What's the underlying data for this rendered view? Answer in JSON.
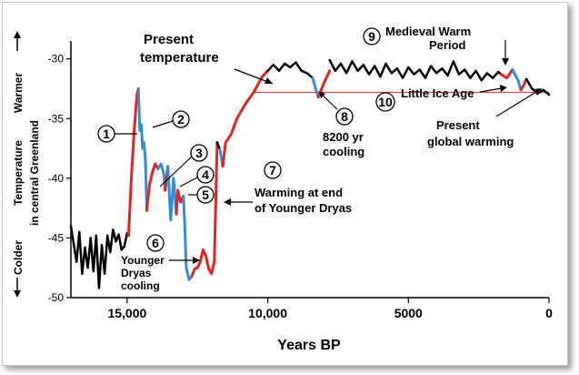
{
  "chart_data": {
    "type": "line",
    "xlabel": "Years BP",
    "ylabel_line1": "Temperature",
    "ylabel_line2": "in central Greenland",
    "warmer_label": "Warmer",
    "colder_label": "Colder",
    "xlim": [
      17000,
      0
    ],
    "ylim": [
      -50,
      -28.5
    ],
    "x_ticks": [
      15000,
      10000,
      5000,
      0
    ],
    "x_tick_labels": [
      "15,000",
      "10,000",
      "5000",
      "0"
    ],
    "y_ticks": [
      -30,
      -35,
      -40,
      -45,
      -50
    ],
    "y_tick_labels": [
      "-30",
      "-35",
      "-40",
      "-45",
      "-50"
    ],
    "present_temperature": -32.8,
    "colors": {
      "warming": "#e8231e",
      "cooling": "#2a8fe0",
      "neutral": "#000000",
      "present_line": "#e8231e"
    },
    "segments": [
      {
        "kind": "neutral",
        "x": [
          17000,
          16900,
          16800,
          16700,
          16600,
          16500,
          16400,
          16300,
          16200,
          16100,
          16000,
          15900,
          15800,
          15700,
          15600,
          15500,
          15400,
          15300,
          15200,
          15100,
          15000,
          14950
        ],
        "y": [
          -44,
          -45.5,
          -47,
          -44.5,
          -48,
          -45.8,
          -47.5,
          -45,
          -47.8,
          -44.8,
          -49.2,
          -45.6,
          -48,
          -44.8,
          -46.2,
          -44.3,
          -45.3,
          -44.7,
          -46,
          -45.7,
          -44.6,
          -44.8
        ]
      },
      {
        "kind": "warming",
        "x": [
          14950,
          14850,
          14750,
          14650,
          14600
        ],
        "y": [
          -44.8,
          -40,
          -36,
          -33,
          -32.5
        ]
      },
      {
        "kind": "cooling",
        "x": [
          14600,
          14550,
          14500,
          14450,
          14400,
          14350,
          14300
        ],
        "y": [
          -32.5,
          -36,
          -35.5,
          -37.5,
          -37,
          -38.5,
          -42.7
        ]
      },
      {
        "kind": "warming",
        "x": [
          14300,
          14200,
          14100,
          14000,
          13900
        ],
        "y": [
          -42.7,
          -40.5,
          -39.5,
          -38.8,
          -39.2
        ]
      },
      {
        "kind": "cooling",
        "x": [
          13900,
          13800,
          13700,
          13650
        ],
        "y": [
          -39.2,
          -38.8,
          -39.6,
          -41
        ]
      },
      {
        "kind": "warming",
        "x": [
          13650,
          13550
        ],
        "y": [
          -41,
          -39
        ]
      },
      {
        "kind": "cooling",
        "x": [
          13550,
          13450,
          13350,
          13250
        ],
        "y": [
          -39,
          -43.5,
          -40,
          -43
        ]
      },
      {
        "kind": "warming",
        "x": [
          13250,
          13200,
          13100,
          13000
        ],
        "y": [
          -43,
          -41,
          -42,
          -41.5
        ]
      },
      {
        "kind": "cooling",
        "x": [
          13000,
          12950,
          12900,
          12800,
          12700
        ],
        "y": [
          -41.5,
          -44,
          -47.5,
          -48.5,
          -48.2
        ]
      },
      {
        "kind": "warming",
        "x": [
          12700,
          12600,
          12500,
          12400,
          12300,
          12200,
          12100,
          12000,
          11900,
          11800
        ],
        "y": [
          -48.2,
          -47.6,
          -47.5,
          -47,
          -46,
          -46.5,
          -47.6,
          -48,
          -47,
          -37
        ]
      },
      {
        "kind": "neutral",
        "x": [
          11800,
          11700
        ],
        "y": [
          -37,
          -37.6
        ]
      },
      {
        "kind": "cooling",
        "x": [
          11700,
          11600
        ],
        "y": [
          -37.6,
          -39
        ]
      },
      {
        "kind": "warming",
        "x": [
          11600,
          11500,
          11300,
          11100,
          10800,
          10500,
          10200,
          10000
        ],
        "y": [
          -39,
          -37,
          -36.3,
          -35,
          -33.8,
          -32.8,
          -31.5,
          -31
        ]
      },
      {
        "kind": "neutral",
        "x": [
          10000,
          9800,
          9600,
          9400,
          9200,
          9000,
          8800,
          8600,
          8400
        ],
        "y": [
          -31,
          -30.5,
          -31,
          -30.4,
          -30.7,
          -30.3,
          -31,
          -31.2,
          -31.6
        ]
      },
      {
        "kind": "cooling",
        "x": [
          8400,
          8300,
          8200
        ],
        "y": [
          -31.6,
          -32.5,
          -33.2
        ]
      },
      {
        "kind": "warming",
        "x": [
          8200,
          8000,
          7800
        ],
        "y": [
          -33.2,
          -32,
          -31
        ]
      },
      {
        "kind": "neutral",
        "x": [
          7800,
          7600,
          7400,
          7200,
          7000,
          6800,
          6600,
          6400,
          6200,
          6000,
          5800,
          5600,
          5400,
          5200,
          5000,
          4800,
          4600,
          4400,
          4200,
          4000,
          3800,
          3600,
          3400,
          3200,
          3000,
          2800,
          2600,
          2400,
          2200,
          2000,
          1800,
          1700
        ],
        "y": [
          -30.1,
          -31,
          -30.4,
          -31.2,
          -30.2,
          -31,
          -30.5,
          -31.3,
          -30.6,
          -31.5,
          -30.4,
          -31.2,
          -30.8,
          -31.6,
          -30.7,
          -31.3,
          -30.9,
          -31.6,
          -30.6,
          -31.2,
          -30.8,
          -31.4,
          -30.2,
          -31.3,
          -30.9,
          -31.6,
          -31,
          -31.8,
          -31.2,
          -31.6,
          -31.1,
          -31.3
        ]
      },
      {
        "kind": "warming",
        "x": [
          1700,
          1500,
          1300
        ],
        "y": [
          -31.3,
          -31.6,
          -30.9
        ]
      },
      {
        "kind": "cooling",
        "x": [
          1300,
          1100,
          1000
        ],
        "y": [
          -30.9,
          -31.8,
          -32.6
        ]
      },
      {
        "kind": "warming",
        "x": [
          1000,
          900,
          800
        ],
        "y": [
          -32.6,
          -32.2,
          -31.7
        ]
      },
      {
        "kind": "neutral",
        "x": [
          800,
          600,
          400,
          200,
          0
        ],
        "y": [
          -31.7,
          -32.5,
          -32.9,
          -32.6,
          -33
        ]
      }
    ],
    "annotations": [
      {
        "id": "title-present",
        "num": "",
        "lines": [
          "Present",
          "temperature"
        ]
      },
      {
        "id": "a1",
        "num": "1",
        "lines": []
      },
      {
        "id": "a2",
        "num": "2",
        "lines": []
      },
      {
        "id": "a3",
        "num": "3",
        "lines": []
      },
      {
        "id": "a4",
        "num": "4",
        "lines": []
      },
      {
        "id": "a5",
        "num": "5",
        "lines": []
      },
      {
        "id": "a6",
        "num": "6",
        "lines": [
          "Younger",
          "Dryas",
          "cooling"
        ]
      },
      {
        "id": "a7",
        "num": "7",
        "lines": [
          "Warming at end",
          "of Younger Dryas"
        ]
      },
      {
        "id": "a8",
        "num": "8",
        "lines": [
          "8200 yr",
          "cooling"
        ]
      },
      {
        "id": "a9",
        "num": "9",
        "lines": [
          "Medieval Warm",
          "Period"
        ]
      },
      {
        "id": "a10",
        "num": "10",
        "lines": [
          "Little Ice Age"
        ]
      },
      {
        "id": "pgw",
        "num": "",
        "lines": [
          "Present",
          "global warming"
        ]
      }
    ]
  }
}
